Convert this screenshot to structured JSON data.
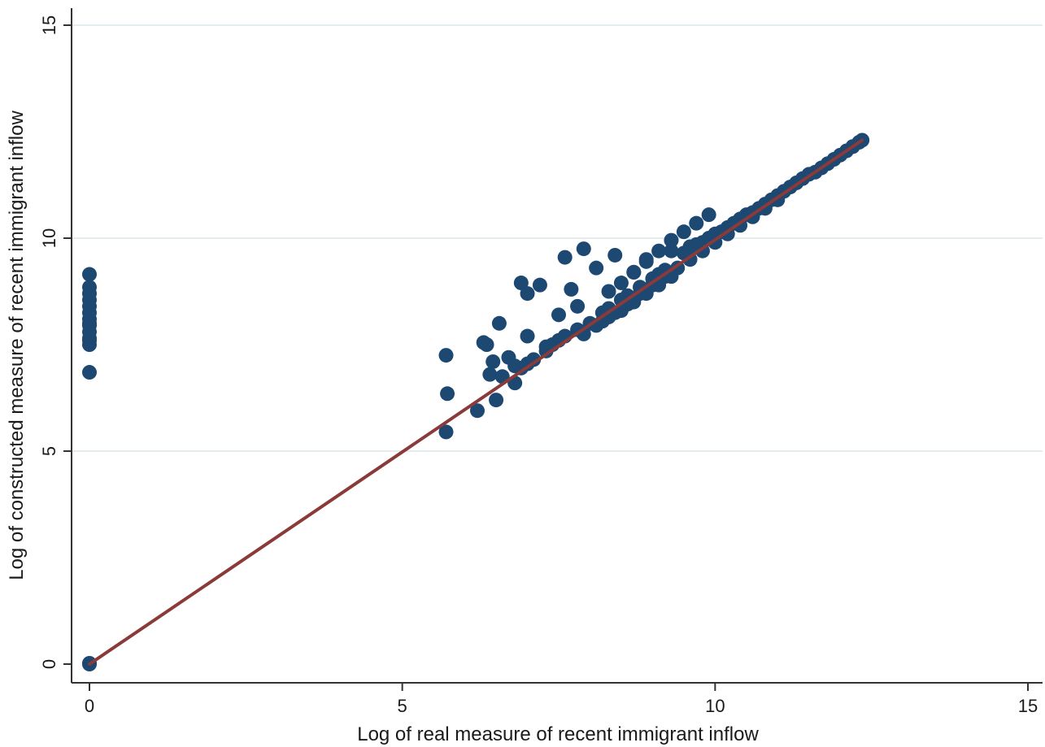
{
  "chart_data": {
    "type": "scatter",
    "xlabel": "Log of real measure of recent immigrant inflow",
    "ylabel": "Log of constructed measure of recent immigrant inflow",
    "xlim": [
      0,
      15
    ],
    "ylim": [
      0,
      15
    ],
    "xticks": [
      "0",
      "5",
      "10",
      "15"
    ],
    "yticks": [
      "0",
      "5",
      "10",
      "15"
    ],
    "grid": "horizontal",
    "legend": "none",
    "colors": {
      "points": "#1d4872",
      "fit_line": "#8b3a3a",
      "grid": "#e3ecef",
      "axis": "#333333"
    },
    "series": [
      {
        "kind": "points",
        "x": [
          0,
          0,
          0,
          0,
          0,
          0,
          0,
          0,
          0,
          0,
          0,
          0,
          0,
          0,
          0,
          0,
          5.7,
          5.72,
          5.7,
          6.2,
          6.3,
          6.4,
          6.5,
          6.6,
          6.7,
          6.9,
          7.2,
          7.0,
          7.6,
          7.9,
          6.55,
          6.35,
          6.45,
          6.8,
          6.8,
          6.9,
          7.0,
          7.1,
          7.3,
          7.4,
          7.5,
          7.6,
          7.8,
          7.0,
          7.3,
          7.8,
          8.0,
          8.2,
          8.3,
          8.5,
          8.6,
          8.8,
          9.0,
          9.1,
          9.2,
          7.5,
          7.7,
          8.1,
          8.4,
          8.7,
          8.9,
          9.3,
          9.5,
          9.6,
          9.7,
          9.8,
          9.9,
          10.0,
          10.1,
          10.2,
          10.3,
          10.4,
          10.5,
          10.6,
          10.7,
          10.8,
          10.9,
          11.0,
          11.1,
          11.2,
          11.3,
          11.4,
          11.5,
          11.6,
          11.7,
          11.8,
          11.9,
          12.0,
          12.1,
          12.2,
          12.3,
          12.35,
          12.2,
          8.2,
          8.4,
          8.6,
          8.8,
          9.0,
          9.2,
          9.4,
          9.6,
          9.8,
          10.0,
          10.2,
          10.4,
          10.6,
          10.8,
          11.0,
          8.3,
          8.5,
          8.7,
          8.9,
          9.1,
          9.3,
          9.5,
          9.7,
          9.9,
          7.9,
          8.1,
          8.3,
          8.5,
          8.7,
          8.9,
          9.1,
          9.3
        ],
        "y": [
          0,
          0.02,
          6.85,
          7.5,
          7.65,
          7.8,
          7.95,
          8.1,
          8.25,
          8.4,
          8.55,
          8.7,
          8.85,
          9.15,
          7.6,
          8.0,
          5.45,
          6.35,
          7.25,
          5.95,
          7.55,
          6.8,
          6.2,
          6.75,
          7.2,
          8.95,
          8.9,
          8.7,
          9.55,
          9.75,
          8.0,
          7.5,
          7.1,
          6.6,
          7.0,
          6.95,
          7.05,
          7.15,
          7.35,
          7.5,
          7.6,
          7.7,
          7.85,
          7.7,
          7.45,
          8.4,
          8.0,
          8.25,
          8.35,
          8.55,
          8.65,
          8.85,
          9.05,
          9.15,
          9.25,
          8.2,
          8.8,
          9.3,
          9.6,
          9.2,
          9.5,
          9.7,
          9.65,
          9.8,
          9.85,
          9.9,
          10.0,
          10.1,
          10.15,
          10.25,
          10.35,
          10.45,
          10.55,
          10.6,
          10.7,
          10.8,
          10.9,
          11.0,
          11.1,
          11.2,
          11.3,
          11.4,
          11.5,
          11.55,
          11.65,
          11.75,
          11.85,
          11.95,
          12.05,
          12.15,
          12.25,
          12.3,
          12.15,
          8.05,
          8.25,
          8.45,
          8.7,
          8.9,
          9.1,
          9.3,
          9.5,
          9.7,
          9.9,
          10.1,
          10.3,
          10.5,
          10.7,
          10.9,
          8.75,
          8.95,
          9.2,
          9.45,
          9.7,
          9.95,
          10.15,
          10.35,
          10.55,
          7.75,
          7.95,
          8.15,
          8.3,
          8.5,
          8.7,
          8.9,
          9.1
        ]
      },
      {
        "kind": "fit_line",
        "x": [
          0,
          12.35
        ],
        "y": [
          0,
          12.3
        ]
      }
    ]
  }
}
